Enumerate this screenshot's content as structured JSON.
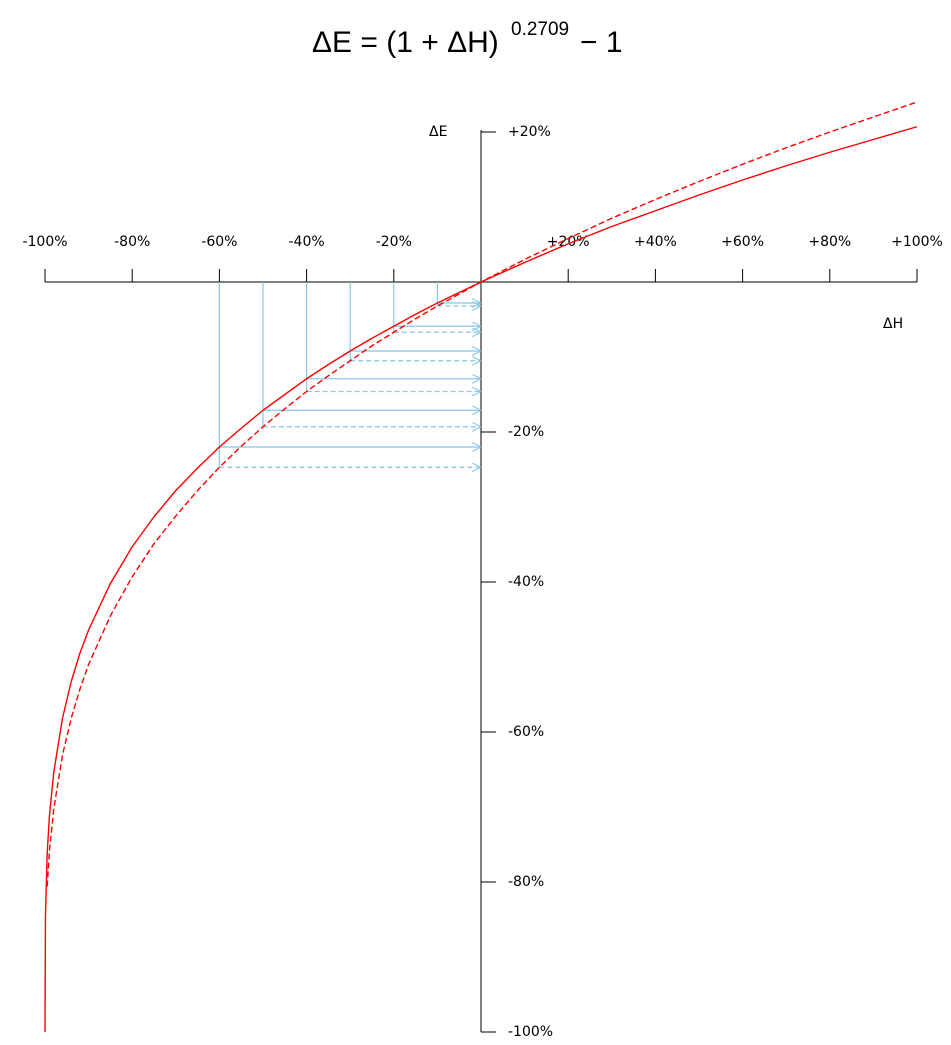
{
  "chart_data": {
    "type": "line",
    "title": {
      "base": "ΔE = (1 + ΔH)",
      "exponent": "0.2709",
      "tail": "− 1"
    },
    "x_label": "ΔH",
    "y_label": "ΔE",
    "x": [
      -100,
      -99.9,
      -99.5,
      -99,
      -98,
      -96,
      -94,
      -92,
      -90,
      -85,
      -80,
      -75,
      -70,
      -65,
      -60,
      -55,
      -50,
      -45,
      -40,
      -35,
      -30,
      -25,
      -20,
      -15,
      -10,
      -5,
      0,
      10,
      20,
      30,
      40,
      50,
      60,
      70,
      80,
      90,
      100
    ],
    "series": [
      {
        "color": "#ff0000",
        "style": "solid",
        "values": [
          -100,
          -84.6,
          -76.2,
          -71.3,
          -65.4,
          -58.2,
          -53.3,
          -49.5,
          -46.4,
          -40.2,
          -35.3,
          -31.3,
          -27.8,
          -24.8,
          -22.0,
          -19.5,
          -17.1,
          -15.0,
          -12.9,
          -11.0,
          -9.2,
          -7.5,
          -5.9,
          -4.3,
          -2.8,
          -1.4,
          0,
          2.6,
          5.1,
          7.4,
          9.5,
          11.6,
          13.6,
          15.5,
          17.3,
          19.0,
          20.7
        ]
      },
      {
        "color": "#ff0000",
        "style": "dashed",
        "values": [
          null,
          null,
          -80.6,
          -76.0,
          -70.3,
          -63.1,
          -58.2,
          -54.3,
          -51.0,
          -44.5,
          -39.3,
          -34.9,
          -31.2,
          -27.8,
          -24.7,
          -21.9,
          -19.3,
          -16.9,
          -14.6,
          -12.5,
          -10.5,
          -8.5,
          -6.7,
          -4.9,
          -3.2,
          -1.6,
          0,
          3.0,
          5.8,
          8.5,
          11.0,
          13.4,
          15.7,
          17.9,
          20.0,
          22.0,
          24.0
        ]
      }
    ],
    "guides": {
      "x": [
        -60,
        -50,
        -40,
        -30,
        -20,
        -10
      ],
      "color": "#87c8e8"
    },
    "xlim": [
      -100,
      100
    ],
    "ylim": [
      -100,
      20
    ],
    "xticks": [
      {
        "value": -100,
        "label": "-100%"
      },
      {
        "value": -80,
        "label": "-80%"
      },
      {
        "value": -60,
        "label": "-60%"
      },
      {
        "value": -40,
        "label": "-40%"
      },
      {
        "value": -20,
        "label": "-20%"
      },
      {
        "value": 20,
        "label": "+20%"
      },
      {
        "value": 40,
        "label": "+40%"
      },
      {
        "value": 60,
        "label": "+60%"
      },
      {
        "value": 80,
        "label": "+80%"
      },
      {
        "value": 100,
        "label": "+100%"
      }
    ],
    "yticks": [
      {
        "value": 20,
        "label": "+20%"
      },
      {
        "value": -20,
        "label": "-20%"
      },
      {
        "value": -40,
        "label": "-40%"
      },
      {
        "value": -60,
        "label": "-60%"
      },
      {
        "value": -80,
        "label": "-80%"
      },
      {
        "value": -100,
        "label": "-100%"
      }
    ]
  }
}
